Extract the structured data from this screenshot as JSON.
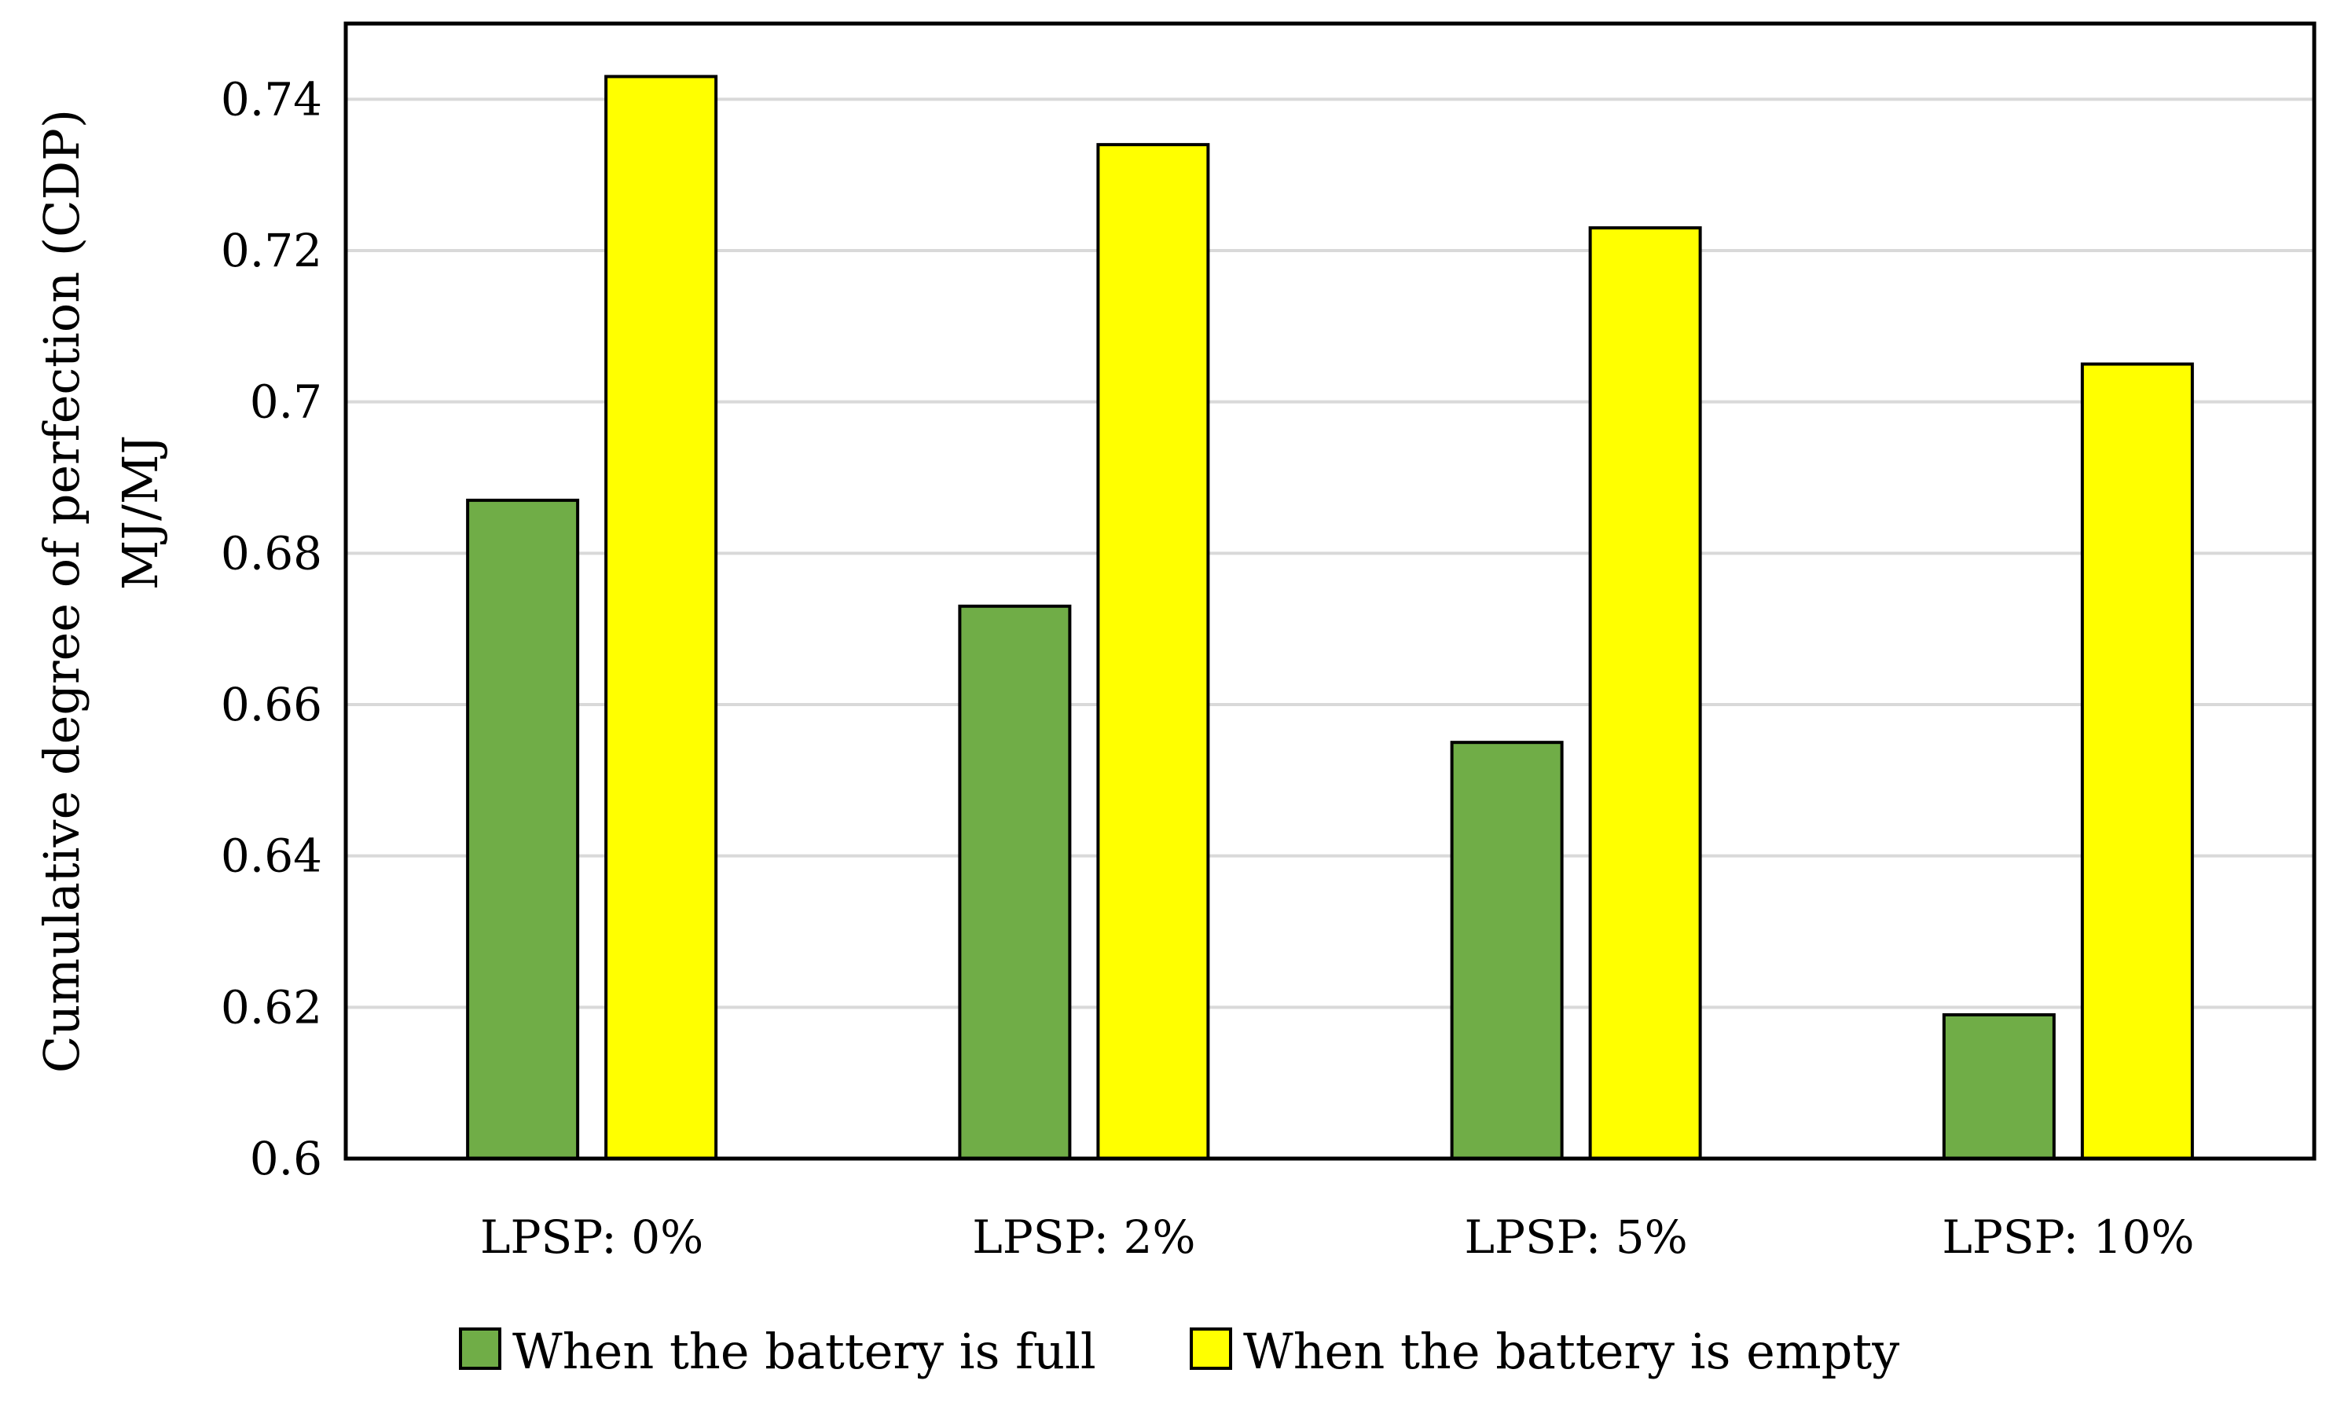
{
  "chart_data": {
    "type": "bar",
    "categories": [
      "LPSP: 0%",
      "LPSP: 2%",
      "LPSP: 5%",
      "LPSP: 10%"
    ],
    "series": [
      {
        "name": "When the battery is full",
        "values": [
          0.687,
          0.673,
          0.655,
          0.619
        ],
        "color": "#70ad47"
      },
      {
        "name": "When the battery is empty",
        "values": [
          0.743,
          0.734,
          0.723,
          0.705
        ],
        "color": "#ffff00"
      }
    ],
    "title": "",
    "xlabel": "",
    "ylabel_line1": "Cumulative degree of perfection  (CDP)",
    "ylabel_line2": "MJ/MJ",
    "ylim": [
      0.6,
      0.75
    ],
    "yticks": [
      0.6,
      0.62,
      0.64,
      0.66,
      0.68,
      0.7,
      0.72,
      0.74
    ],
    "ytick_labels": [
      "0.6",
      "0.62",
      "0.64",
      "0.66",
      "0.68",
      "0.7",
      "0.72",
      "0.74"
    ],
    "grid": true,
    "legend_position": "bottom"
  }
}
